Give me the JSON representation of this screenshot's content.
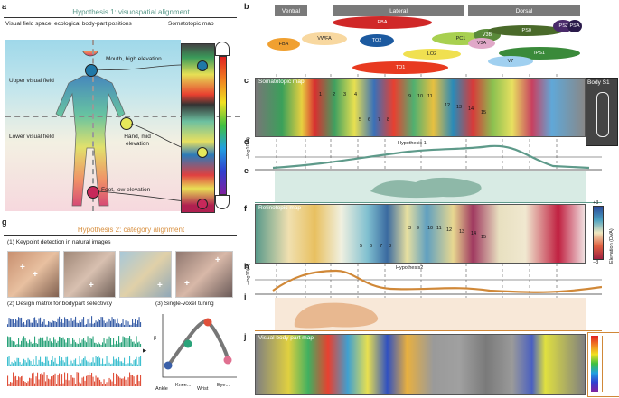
{
  "panels": {
    "a": {
      "label": "a",
      "title": "Hypothesis 1: visuospatial alignment",
      "col_left": "Visual field space: ecological body-part positions",
      "col_right": "Somatotopic map",
      "upper": "Upper visual field",
      "lower": "Lower visual field",
      "mouth": "Mouth, high elevation",
      "hand": "Hand, mid elevation",
      "foot": "Foot, low elevation",
      "colors": {
        "title": "#5b9a8b",
        "upper_marker": "#1f78a8",
        "hand_marker": "#e6e85a",
        "foot_marker": "#c7285a"
      }
    },
    "b": {
      "label": "b",
      "groups": [
        "Ventral",
        "Lateral",
        "Dorsal"
      ],
      "rois": [
        "EBA",
        "FBA",
        "VWFA",
        "TO2",
        "LO2",
        "PC1",
        "TO1",
        "V3B",
        "IPS0",
        "IPS2",
        "IPS1",
        "V7",
        "V3A",
        "PSA"
      ]
    },
    "c": {
      "label": "c",
      "map": "Somatotopic map",
      "inset": "Body S1",
      "nums": [
        "1",
        "2",
        "3",
        "4",
        "5",
        "6",
        "7",
        "8",
        "9",
        "10",
        "11",
        "12",
        "13",
        "14",
        "15"
      ]
    },
    "d": {
      "label": "d",
      "ylabel": "−log10(P)",
      "title": "Hypothesis 1"
    },
    "e": {
      "label": "e"
    },
    "f": {
      "label": "f",
      "map": "Retinotopic map",
      "cbar": "Elevation (DVA)",
      "cmax": "+3",
      "cmin": "−3",
      "nums": [
        "3",
        "9",
        "10",
        "11",
        "12",
        "13",
        "14",
        "15",
        "5",
        "6",
        "7",
        "8"
      ]
    },
    "h": {
      "label": "h",
      "ylabel": "−log10(P)",
      "title": "Hypothesis2"
    },
    "i": {
      "label": "i"
    },
    "j": {
      "label": "j",
      "map": "Visual body part map"
    },
    "g": {
      "label": "g",
      "title": "Hypothesis 2: category alignment",
      "step1": "(1) Keypoint detection in natural images",
      "step2": "(2) Design matrix for bodypart selectivity",
      "step3": "(3) Single-voxel tuning",
      "beta": "β",
      "tuning_labels": [
        "Ankle",
        "Knee...",
        "Wrist",
        "Eye..."
      ],
      "tuning_values": [
        0.15,
        0.55,
        0.95,
        0.25
      ],
      "colors": {
        "title": "#d89040",
        "ankle": "#3a5fa8",
        "knee": "#2aa37a",
        "wrist": "#e0503a",
        "eye": "#e07090"
      }
    }
  }
}
